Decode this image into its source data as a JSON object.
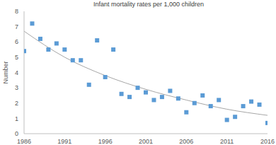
{
  "chart_data": {
    "type": "scatter",
    "title": "Infant mortality rates per 1,000 children",
    "y_label": "Number",
    "x": [
      1986,
      1987,
      1988,
      1989,
      1990,
      1991,
      1992,
      1993,
      1994,
      1995,
      1996,
      1997,
      1998,
      1999,
      2000,
      2001,
      2002,
      2003,
      2004,
      2005,
      2006,
      2007,
      2008,
      2009,
      2010,
      2011,
      2012,
      2013,
      2014,
      2015,
      2016
    ],
    "values": [
      5.4,
      7.2,
      6.2,
      5.5,
      5.9,
      5.5,
      4.8,
      4.8,
      3.2,
      6.1,
      3.7,
      5.5,
      2.6,
      2.4,
      3.0,
      2.7,
      2.2,
      2.4,
      2.8,
      2.3,
      1.4,
      2.0,
      2.5,
      1.8,
      2.2,
      0.9,
      1.1,
      1.8,
      2.1,
      1.9,
      0.7
    ],
    "color": "#5b9bd5",
    "marker": "square",
    "trend_x": [
      1986,
      1991,
      1996,
      2001,
      2006,
      2011,
      2016
    ],
    "trend_values": [
      6.7,
      5.0,
      3.8,
      2.9,
      2.2,
      1.6,
      1.2
    ],
    "trend_color": "#a6a6a6",
    "xlim": [
      1986,
      2016
    ],
    "xticks": [
      1986,
      1991,
      1996,
      2001,
      2006,
      2011,
      2016
    ],
    "ylim": [
      0,
      8
    ],
    "yticks": [
      0,
      1,
      2,
      3,
      4,
      5,
      6,
      7,
      8
    ],
    "grid": false
  }
}
